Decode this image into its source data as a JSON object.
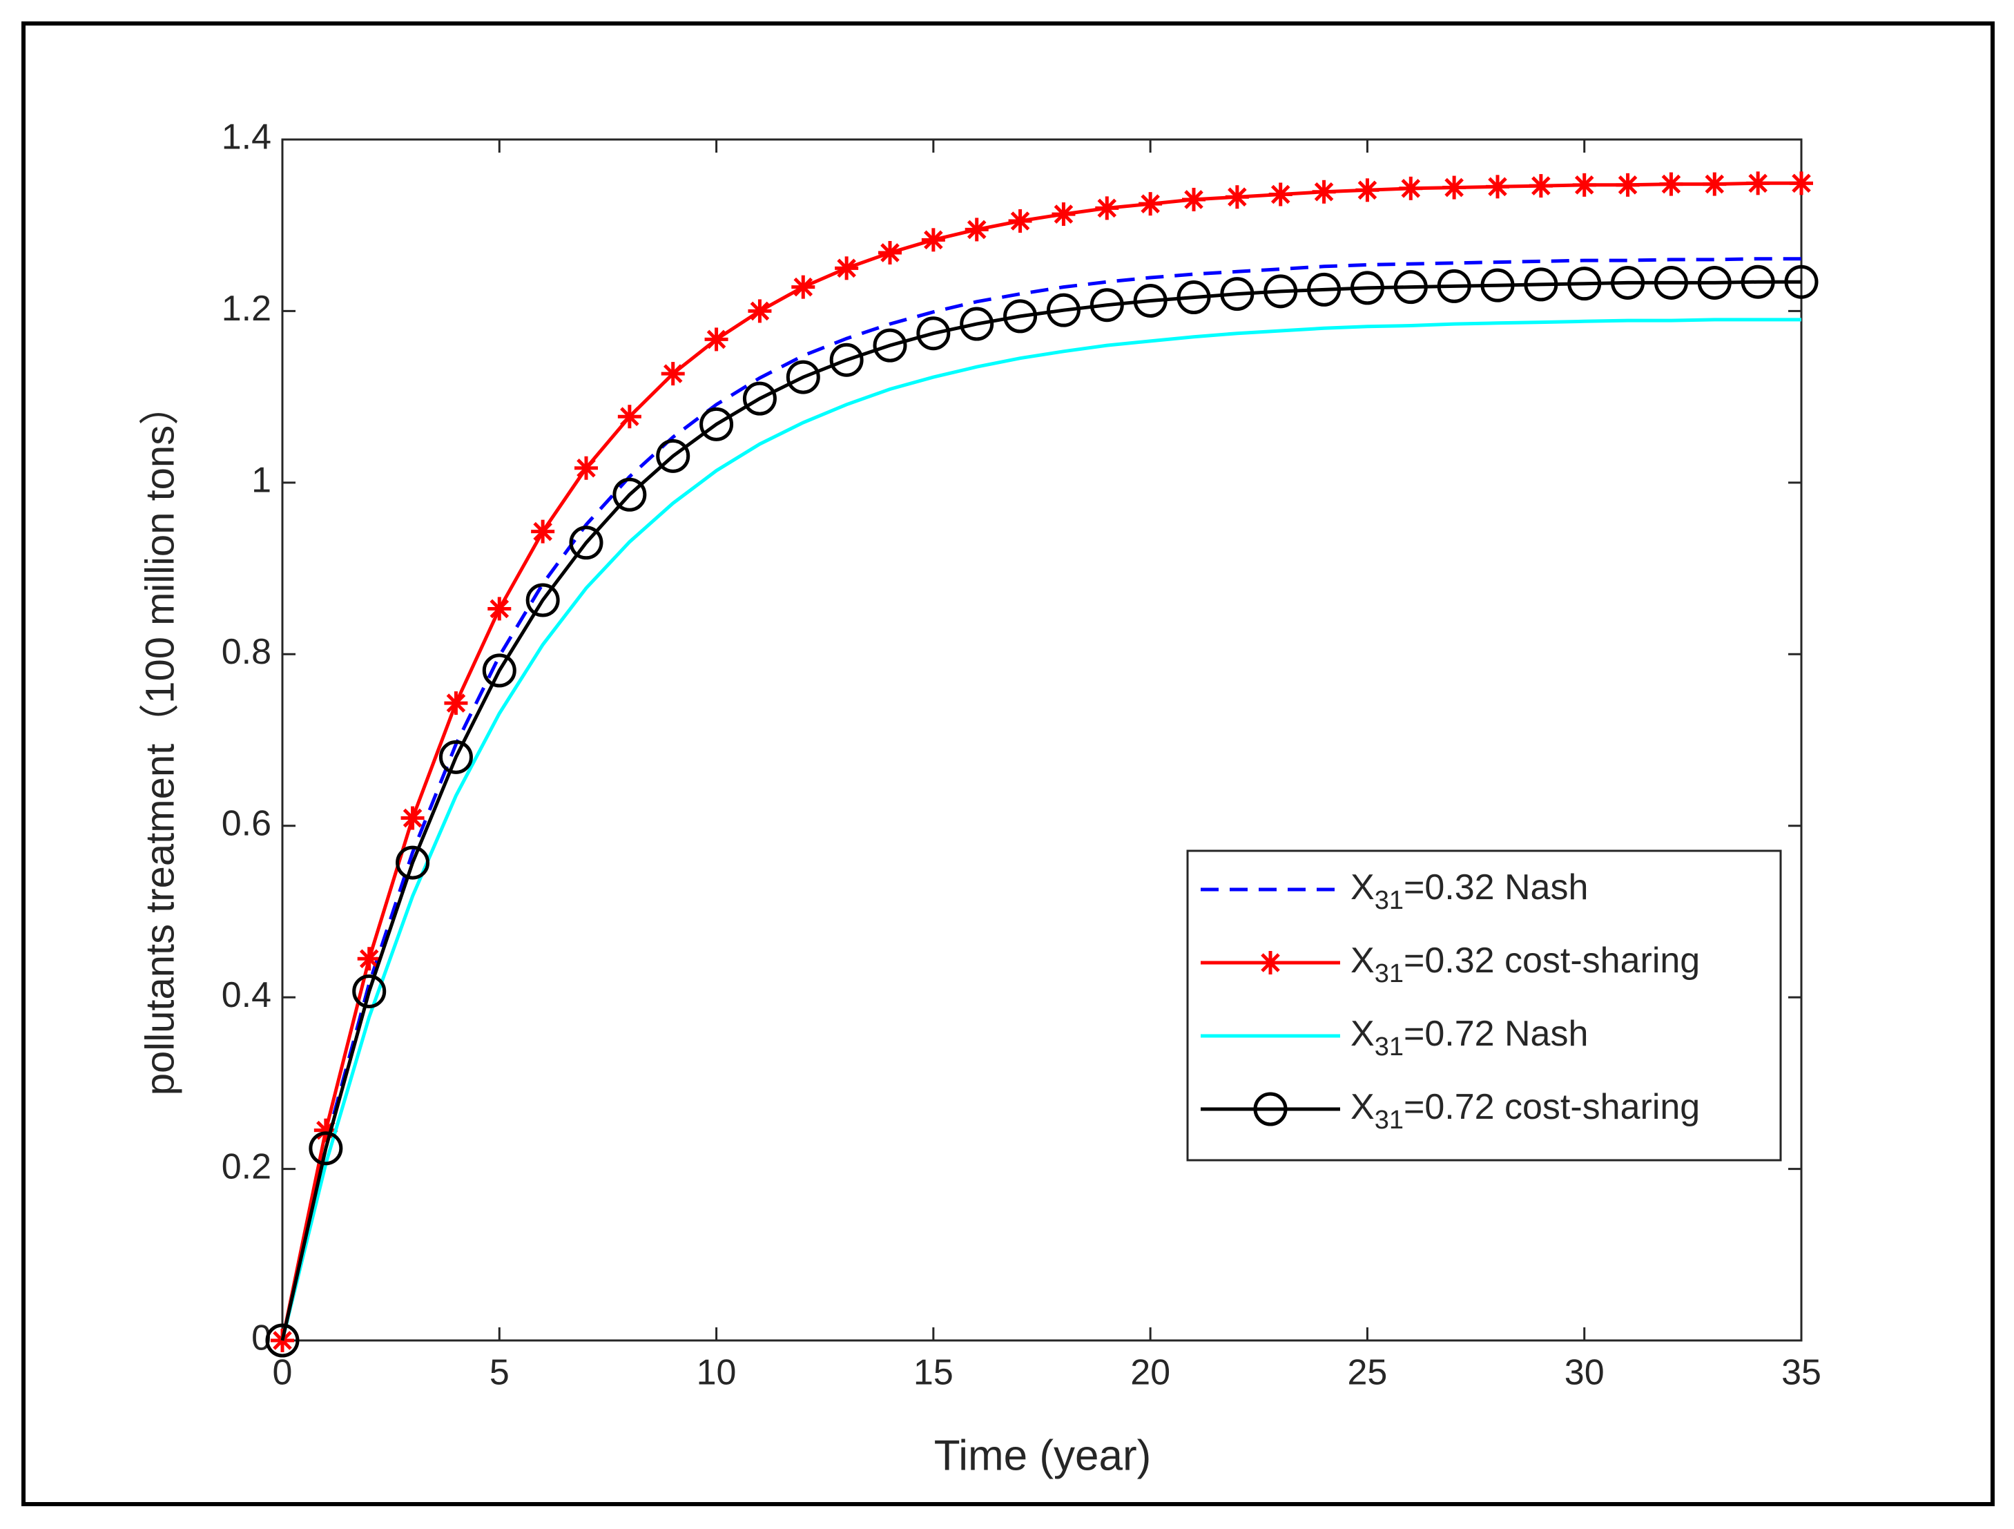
{
  "chart_data": {
    "type": "line",
    "x_label": "Time (year)",
    "y_label": "pollutants treatment（100 million tons）",
    "x": [
      0,
      1,
      2,
      3,
      4,
      5,
      6,
      7,
      8,
      9,
      10,
      11,
      12,
      13,
      14,
      15,
      16,
      17,
      18,
      19,
      20,
      21,
      22,
      23,
      24,
      25,
      26,
      27,
      28,
      29,
      30,
      31,
      32,
      33,
      34,
      35
    ],
    "series": [
      {
        "name": "X31=0.32 Nash",
        "color": "#0000ff",
        "style": "dashed",
        "marker": "none",
        "values": [
          0,
          0.229,
          0.416,
          0.569,
          0.695,
          0.798,
          0.882,
          0.951,
          1.007,
          1.053,
          1.091,
          1.122,
          1.148,
          1.168,
          1.185,
          1.199,
          1.211,
          1.22,
          1.228,
          1.234,
          1.239,
          1.243,
          1.246,
          1.249,
          1.252,
          1.254,
          1.255,
          1.256,
          1.257,
          1.258,
          1.259,
          1.259,
          1.26,
          1.26,
          1.261,
          1.261
        ]
      },
      {
        "name": "X31=0.32 cost-sharing",
        "color": "#ff0000",
        "style": "solid",
        "marker": "asterisk",
        "values": [
          0,
          0.245,
          0.445,
          0.609,
          0.743,
          0.853,
          0.943,
          1.017,
          1.077,
          1.127,
          1.167,
          1.2,
          1.228,
          1.25,
          1.268,
          1.283,
          1.295,
          1.305,
          1.313,
          1.32,
          1.325,
          1.33,
          1.333,
          1.336,
          1.339,
          1.341,
          1.343,
          1.344,
          1.345,
          1.346,
          1.347,
          1.347,
          1.348,
          1.348,
          1.349,
          1.349
        ]
      },
      {
        "name": "X31=0.72 Nash",
        "color": "#00ffff",
        "style": "solid",
        "marker": "none",
        "values": [
          0,
          0.206,
          0.377,
          0.518,
          0.635,
          0.731,
          0.811,
          0.877,
          0.931,
          0.976,
          1.014,
          1.045,
          1.07,
          1.091,
          1.109,
          1.123,
          1.135,
          1.145,
          1.153,
          1.16,
          1.165,
          1.17,
          1.174,
          1.177,
          1.18,
          1.182,
          1.183,
          1.185,
          1.186,
          1.187,
          1.188,
          1.189,
          1.189,
          1.19,
          1.19,
          1.19
        ]
      },
      {
        "name": "X31=0.72 cost-sharing",
        "color": "#000000",
        "style": "solid",
        "marker": "circle",
        "values": [
          0,
          0.224,
          0.407,
          0.557,
          0.68,
          0.781,
          0.863,
          0.93,
          0.986,
          1.031,
          1.068,
          1.098,
          1.123,
          1.143,
          1.16,
          1.174,
          1.185,
          1.194,
          1.201,
          1.207,
          1.212,
          1.216,
          1.22,
          1.223,
          1.225,
          1.227,
          1.228,
          1.229,
          1.23,
          1.231,
          1.232,
          1.233,
          1.233,
          1.233,
          1.234,
          1.234
        ]
      }
    ],
    "xlim": [
      0,
      35
    ],
    "xticks": [
      0,
      5,
      10,
      15,
      20,
      25,
      30,
      35
    ],
    "ylim": [
      0,
      1.4
    ],
    "yticks": [
      0,
      0.2,
      0.4,
      0.6,
      0.8,
      1,
      1.2,
      1.4
    ],
    "legend": "lower right",
    "grid": false
  }
}
